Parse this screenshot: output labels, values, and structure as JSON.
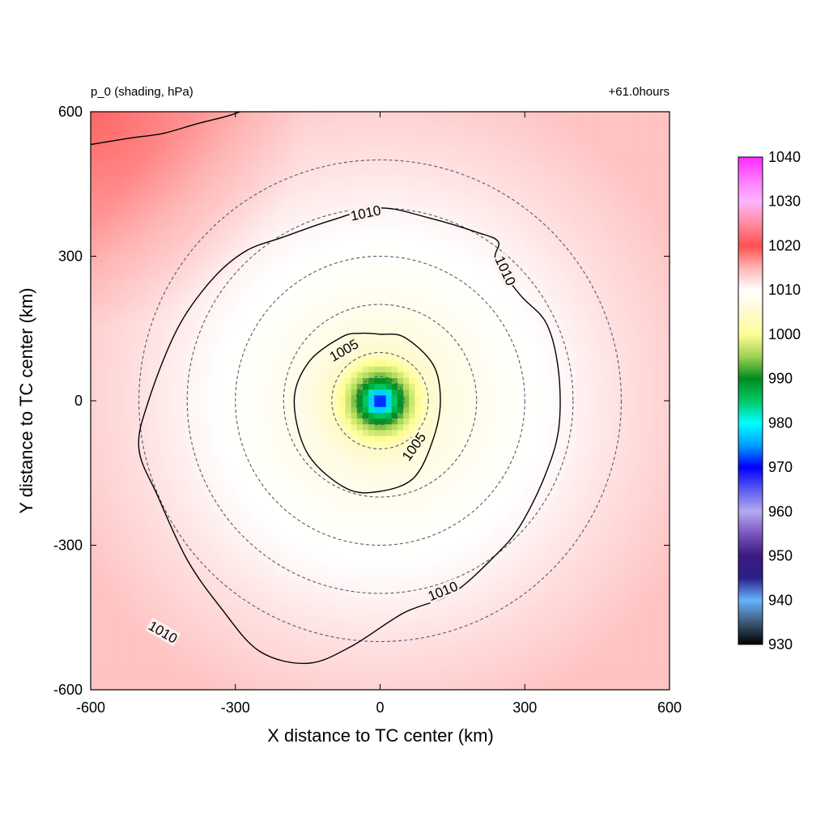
{
  "chart_data": {
    "type": "heatmap",
    "variable_label": "p_0 (shading, hPa)",
    "time_label": "+61.0hours",
    "xlabel": "X distance to TC center (km)",
    "ylabel": "Y distance to TC center (km)",
    "xlim": [
      -600,
      600
    ],
    "ylim": [
      -600,
      600
    ],
    "x_ticks": [
      "-600",
      "-300",
      "0",
      "300",
      "600"
    ],
    "y_ticks": [
      "600",
      "300",
      "0",
      "-300",
      "-600"
    ],
    "colorbar": {
      "min": 930,
      "max": 1040,
      "tick_labels": [
        "1040",
        "1030",
        "1020",
        "1010",
        "1000",
        "990",
        "980",
        "970",
        "960",
        "950",
        "940",
        "930"
      ],
      "stops": [
        {
          "value": 930,
          "color": "#000000"
        },
        {
          "value": 935,
          "color": "#3d5a78"
        },
        {
          "value": 940,
          "color": "#66b2ff"
        },
        {
          "value": 945,
          "color": "#2a1f8a"
        },
        {
          "value": 950,
          "color": "#3b1a80"
        },
        {
          "value": 955,
          "color": "#7a55c0"
        },
        {
          "value": 960,
          "color": "#b6aaf0"
        },
        {
          "value": 965,
          "color": "#5a5af0"
        },
        {
          "value": 970,
          "color": "#0000ff"
        },
        {
          "value": 975,
          "color": "#00a0ff"
        },
        {
          "value": 980,
          "color": "#00ffff"
        },
        {
          "value": 985,
          "color": "#00c864"
        },
        {
          "value": 990,
          "color": "#008c1e"
        },
        {
          "value": 995,
          "color": "#a0d250"
        },
        {
          "value": 1000,
          "color": "#ffff96"
        },
        {
          "value": 1005,
          "color": "#fffad2"
        },
        {
          "value": 1010,
          "color": "#ffffff"
        },
        {
          "value": 1015,
          "color": "#ffb4b4"
        },
        {
          "value": 1020,
          "color": "#ff5050"
        },
        {
          "value": 1025,
          "color": "#ff8ca0"
        },
        {
          "value": 1030,
          "color": "#ffb4ff"
        },
        {
          "value": 1035,
          "color": "#ff78ff"
        },
        {
          "value": 1040,
          "color": "#ff28ff"
        }
      ]
    },
    "pressure_field": {
      "center_pressure": 967,
      "ring_radius_km": [
        0,
        15,
        30,
        60,
        100,
        150,
        250,
        380,
        500,
        700
      ],
      "ring_pressure": [
        967,
        975,
        985,
        996,
        1004,
        1007,
        1009,
        1010.5,
        1012,
        1014
      ],
      "upper_left_max": 1017
    },
    "contours": [
      {
        "level": 1005,
        "labels": [
          "1005",
          "1005"
        ],
        "points_km": [
          [
            0,
            138
          ],
          [
            50,
            132
          ],
          [
            110,
            75
          ],
          [
            125,
            0
          ],
          [
            110,
            -80
          ],
          [
            70,
            -160
          ],
          [
            0,
            -188
          ],
          [
            -70,
            -182
          ],
          [
            -150,
            -110
          ],
          [
            -178,
            0
          ],
          [
            -148,
            80
          ],
          [
            -80,
            132
          ],
          [
            -40,
            140
          ]
        ]
      },
      {
        "level": 1010,
        "labels": [
          "1010",
          "1010",
          "1010",
          "1010"
        ],
        "points_km": [
          [
            -200,
            340
          ],
          [
            -100,
            375
          ],
          [
            0,
            400
          ],
          [
            100,
            380
          ],
          [
            200,
            350
          ],
          [
            245,
            330
          ],
          [
            240,
            290
          ],
          [
            290,
            220
          ],
          [
            345,
            160
          ],
          [
            370,
            60
          ],
          [
            370,
            -60
          ],
          [
            340,
            -160
          ],
          [
            290,
            -260
          ],
          [
            240,
            -320
          ],
          [
            150,
            -400
          ],
          [
            50,
            -440
          ],
          [
            -60,
            -510
          ],
          [
            -150,
            -545
          ],
          [
            -250,
            -520
          ],
          [
            -330,
            -430
          ],
          [
            -400,
            -330
          ],
          [
            -460,
            -200
          ],
          [
            -500,
            -100
          ],
          [
            -480,
            0
          ],
          [
            -420,
            150
          ],
          [
            -350,
            250
          ],
          [
            -280,
            310
          ]
        ]
      },
      {
        "level": 1010,
        "labels": [],
        "points_km": [
          [
            -600,
            532
          ],
          [
            -520,
            545
          ],
          [
            -450,
            555
          ],
          [
            -380,
            575
          ],
          [
            -320,
            590
          ],
          [
            -290,
            600
          ]
        ]
      }
    ],
    "reference_circles_km": [
      50,
      100,
      200,
      300,
      400,
      500
    ],
    "grid": false
  }
}
